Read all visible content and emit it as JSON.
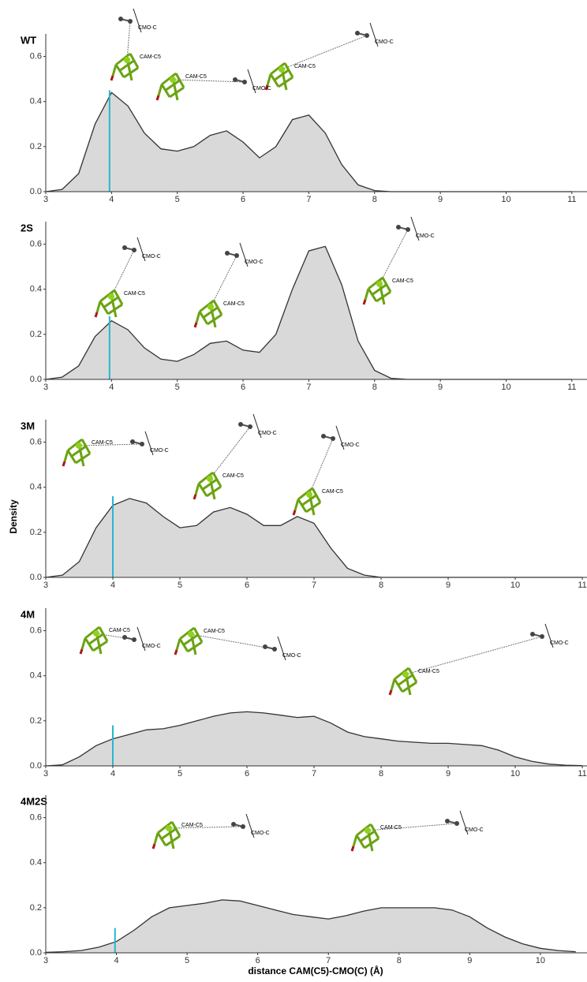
{
  "chart_data": [
    {
      "type": "area",
      "title": "WT",
      "fill": "#d9d9d9",
      "line_color": "#333333",
      "x": [
        3,
        3.25,
        3.5,
        3.75,
        4,
        4.25,
        4.5,
        4.75,
        5,
        5.25,
        5.5,
        5.75,
        6,
        6.25,
        6.5,
        6.75,
        7,
        7.25,
        7.5,
        7.75,
        8,
        8.25,
        8.5,
        8.75,
        9,
        9.25,
        9.5,
        9.75,
        10,
        10.25,
        10.5,
        10.75,
        11
      ],
      "values": [
        0,
        0.01,
        0.08,
        0.3,
        0.44,
        0.38,
        0.26,
        0.19,
        0.18,
        0.2,
        0.25,
        0.27,
        0.22,
        0.15,
        0.2,
        0.32,
        0.34,
        0.26,
        0.12,
        0.03,
        0.005,
        0,
        0,
        0,
        0,
        0,
        0,
        0,
        0,
        0,
        0,
        0,
        0
      ],
      "marker": {
        "x": 3.97,
        "y": 0.45,
        "color": "#29b6d0"
      },
      "xlim": [
        3,
        11.23
      ],
      "xticks": [
        3,
        4,
        5,
        6,
        7,
        8,
        9,
        10,
        11
      ],
      "ylim": [
        0,
        0.7
      ],
      "yticks": [
        {
          "value": 0,
          "label": "0.0"
        },
        0.2,
        0.4,
        0.6
      ],
      "annotations": [
        "CAM-C5",
        "CMO-C",
        "CAM-C5",
        "CMO-C",
        "CAM-C5",
        "CMO-C"
      ]
    },
    {
      "type": "area",
      "title": "2S",
      "fill": "#d9d9d9",
      "line_color": "#333333",
      "x": [
        3,
        3.25,
        3.5,
        3.75,
        4,
        4.25,
        4.5,
        4.75,
        5,
        5.25,
        5.5,
        5.75,
        6,
        6.25,
        6.5,
        6.75,
        7,
        7.25,
        7.5,
        7.75,
        8,
        8.25,
        8.5,
        8.75,
        9,
        9.25,
        9.5,
        9.75,
        10,
        10.25,
        10.5,
        10.75,
        11
      ],
      "values": [
        0,
        0.01,
        0.06,
        0.19,
        0.26,
        0.22,
        0.14,
        0.09,
        0.08,
        0.11,
        0.16,
        0.17,
        0.13,
        0.12,
        0.2,
        0.4,
        0.57,
        0.59,
        0.42,
        0.17,
        0.04,
        0.005,
        0,
        0,
        0,
        0,
        0,
        0,
        0,
        0,
        0,
        0,
        0
      ],
      "marker": {
        "x": 3.97,
        "y": 0.28,
        "color": "#29b6d0"
      },
      "xlim": [
        3,
        11.23
      ],
      "xticks": [
        3,
        4,
        5,
        6,
        7,
        8,
        9,
        10,
        11
      ],
      "ylim": [
        0,
        0.7
      ],
      "yticks": [
        {
          "value": 0,
          "label": "0.0"
        },
        0.2,
        0.4,
        0.6
      ],
      "annotations": [
        "CAM-C5",
        "CMO-C",
        "CAM-C5",
        "CMO-C",
        "CAM-C5",
        "CMO-C"
      ]
    },
    {
      "type": "area",
      "title": "3M",
      "fill": "#d9d9d9",
      "line_color": "#333333",
      "ylabel": "Density",
      "x": [
        3,
        3.25,
        3.5,
        3.75,
        4,
        4.25,
        4.5,
        4.75,
        5,
        5.25,
        5.5,
        5.75,
        6,
        6.25,
        6.5,
        6.75,
        7,
        7.25,
        7.5,
        7.75,
        8,
        8.25,
        8.5,
        8.75,
        9,
        9.25,
        9.5,
        9.75,
        10,
        10.25,
        10.5,
        10.75,
        11
      ],
      "values": [
        0,
        0.01,
        0.07,
        0.22,
        0.32,
        0.35,
        0.33,
        0.27,
        0.22,
        0.23,
        0.29,
        0.31,
        0.28,
        0.23,
        0.23,
        0.27,
        0.24,
        0.13,
        0.04,
        0.01,
        0,
        0,
        0,
        0,
        0,
        0,
        0,
        0,
        0,
        0,
        0,
        0,
        0
      ],
      "marker": {
        "x": 4.0,
        "y": 0.36,
        "color": "#29b6d0"
      },
      "xlim": [
        3,
        11.07
      ],
      "xticks": [
        3,
        4,
        5,
        6,
        7,
        8,
        9,
        10,
        11
      ],
      "ylim": [
        0,
        0.7
      ],
      "yticks": [
        {
          "value": 0,
          "label": "0.0"
        },
        0.2,
        0.4,
        0.6
      ],
      "annotations": [
        "CAM-C5",
        "CMO-C",
        "CAM-C5",
        "CMO-C",
        "CAM-C5",
        "CMO-C"
      ]
    },
    {
      "type": "area",
      "title": "4M",
      "fill": "#d9d9d9",
      "line_color": "#333333",
      "x": [
        3,
        3.25,
        3.5,
        3.75,
        4,
        4.25,
        4.5,
        4.75,
        5,
        5.25,
        5.5,
        5.75,
        6,
        6.25,
        6.5,
        6.75,
        7,
        7.25,
        7.5,
        7.75,
        8,
        8.25,
        8.5,
        8.75,
        9,
        9.25,
        9.5,
        9.75,
        10,
        10.25,
        10.5,
        10.75,
        11
      ],
      "values": [
        0,
        0.005,
        0.04,
        0.09,
        0.12,
        0.14,
        0.16,
        0.165,
        0.18,
        0.2,
        0.22,
        0.235,
        0.24,
        0.235,
        0.225,
        0.215,
        0.22,
        0.19,
        0.15,
        0.13,
        0.12,
        0.11,
        0.105,
        0.1,
        0.1,
        0.095,
        0.09,
        0.07,
        0.04,
        0.02,
        0.008,
        0.003,
        0.001
      ],
      "marker": {
        "x": 4.0,
        "y": 0.18,
        "color": "#29b6d0"
      },
      "xlim": [
        3,
        11.07
      ],
      "xticks": [
        3,
        4,
        5,
        6,
        7,
        8,
        9,
        10,
        11
      ],
      "ylim": [
        0,
        0.7
      ],
      "yticks": [
        {
          "value": 0,
          "label": "0.0"
        },
        0.2,
        0.4,
        0.6
      ],
      "annotations": [
        "CAM-C5",
        "CMO-C",
        "CAM-C5",
        "CMO-C",
        "CAM-C5",
        "CMO-C"
      ]
    },
    {
      "type": "area",
      "title": "4M2S",
      "fill": "#d9d9d9",
      "line_color": "#333333",
      "xlabel": "distance CAM(C5)-CMO(C) (Å)",
      "x": [
        3,
        3.25,
        3.5,
        3.75,
        4,
        4.25,
        4.5,
        4.75,
        5,
        5.25,
        5.5,
        5.75,
        6,
        6.25,
        6.5,
        6.75,
        7,
        7.25,
        7.5,
        7.75,
        8,
        8.25,
        8.5,
        8.75,
        9,
        9.25,
        9.5,
        9.75,
        10,
        10.25,
        10.5
      ],
      "values": [
        0.002,
        0.005,
        0.01,
        0.025,
        0.05,
        0.1,
        0.16,
        0.2,
        0.21,
        0.22,
        0.235,
        0.23,
        0.21,
        0.19,
        0.17,
        0.16,
        0.15,
        0.165,
        0.185,
        0.2,
        0.2,
        0.2,
        0.2,
        0.19,
        0.16,
        0.11,
        0.07,
        0.04,
        0.02,
        0.01,
        0.005
      ],
      "marker": {
        "x": 3.98,
        "y": 0.11,
        "color": "#29b6d0"
      },
      "xlim": [
        3,
        10.66
      ],
      "xticks": [
        3,
        4,
        5,
        6,
        7,
        8,
        9,
        10
      ],
      "ylim": [
        0,
        0.7
      ],
      "yticks": [
        {
          "value": 0,
          "label": "0.0"
        },
        0.2,
        0.4,
        0.6
      ],
      "annotations": [
        "CAM-C5",
        "CMO-C",
        "CAM-C5",
        "CMO-C"
      ]
    }
  ]
}
